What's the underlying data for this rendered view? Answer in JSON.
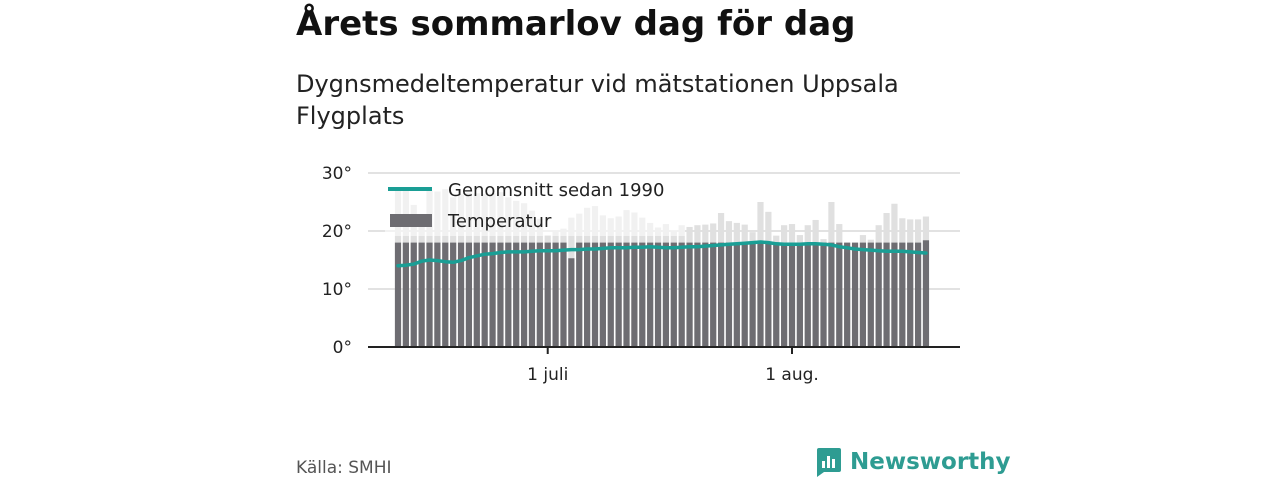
{
  "title": "Årets sommarlov dag för dag",
  "subtitle": "Dygnsmedeltemperatur vid mätstationen Uppsala Flygplats",
  "source": "Källa: SMHI",
  "brand": {
    "name": "Newsworthy",
    "color": "#2e9c92"
  },
  "colors": {
    "bar": "#6e6d72",
    "ghost_bar": "#e0e0e0",
    "line": "#1a9e95",
    "grid": "#d8d8d8",
    "axis": "#222222"
  },
  "chart_data": {
    "type": "bar",
    "ylim": [
      0,
      30
    ],
    "yticks": [
      {
        "value": 0,
        "label": "0°"
      },
      {
        "value": 10,
        "label": "10°"
      },
      {
        "value": 20,
        "label": "20°"
      },
      {
        "value": 30,
        "label": "30°"
      }
    ],
    "xticks": [
      {
        "date": "2018-07-01",
        "label": "1 juli"
      },
      {
        "date": "2018-08-01",
        "label": "1 aug."
      }
    ],
    "x_start": "2018-06-12",
    "x_end": "2018-08-18",
    "grid": true,
    "legend_placement": "top-left",
    "series": [
      {
        "name": "Temperatur",
        "kind": "bar",
        "x": [
          "2018-06-12",
          "2018-06-13",
          "2018-06-14",
          "2018-06-15",
          "2018-06-16",
          "2018-06-17",
          "2018-06-18",
          "2018-06-19",
          "2018-06-20",
          "2018-06-21",
          "2018-06-22",
          "2018-06-23",
          "2018-06-24",
          "2018-06-25",
          "2018-06-26",
          "2018-06-27",
          "2018-06-28",
          "2018-06-29",
          "2018-06-30",
          "2018-07-01",
          "2018-07-02",
          "2018-07-03",
          "2018-07-04",
          "2018-07-05",
          "2018-07-06",
          "2018-07-07",
          "2018-07-08",
          "2018-07-09",
          "2018-07-10",
          "2018-07-11",
          "2018-07-12",
          "2018-07-13",
          "2018-07-14",
          "2018-07-15",
          "2018-07-16",
          "2018-07-17",
          "2018-07-18",
          "2018-07-19",
          "2018-07-20",
          "2018-07-21",
          "2018-07-22",
          "2018-07-23",
          "2018-07-24",
          "2018-07-25",
          "2018-07-26",
          "2018-07-27",
          "2018-07-28",
          "2018-07-29",
          "2018-07-30",
          "2018-07-31",
          "2018-08-01",
          "2018-08-02",
          "2018-08-03",
          "2018-08-04",
          "2018-08-05",
          "2018-08-06",
          "2018-08-07",
          "2018-08-08",
          "2018-08-09",
          "2018-08-10",
          "2018-08-11",
          "2018-08-12",
          "2018-08-13",
          "2018-08-14",
          "2018-08-15",
          "2018-08-16",
          "2018-08-17",
          "2018-08-18"
        ],
        "values": [
          18.0,
          18.0,
          18.0,
          18.0,
          18.0,
          18.0,
          18.0,
          18.0,
          18.0,
          18.0,
          18.0,
          18.0,
          18.0,
          18.0,
          18.0,
          18.0,
          18.0,
          18.0,
          18.0,
          18.0,
          18.0,
          18.0,
          15.3,
          18.0,
          18.0,
          18.0,
          18.0,
          18.0,
          18.0,
          18.0,
          18.0,
          18.0,
          18.0,
          18.0,
          18.0,
          18.0,
          18.0,
          18.0,
          18.0,
          18.0,
          18.0,
          18.0,
          18.0,
          18.0,
          18.0,
          18.0,
          18.0,
          18.0,
          18.0,
          18.0,
          18.0,
          18.0,
          18.0,
          18.0,
          18.0,
          18.0,
          18.0,
          18.0,
          18.0,
          18.0,
          18.0,
          18.0,
          18.0,
          18.0,
          18.0,
          18.0,
          18.0,
          18.4
        ]
      },
      {
        "name": "",
        "kind": "ghost_bar",
        "x": [
          "2018-06-12",
          "2018-06-13",
          "2018-06-14",
          "2018-06-15",
          "2018-06-16",
          "2018-06-17",
          "2018-06-18",
          "2018-06-19",
          "2018-06-20",
          "2018-06-21",
          "2018-06-22",
          "2018-06-23",
          "2018-06-24",
          "2018-06-25",
          "2018-06-26",
          "2018-06-27",
          "2018-06-28",
          "2018-06-29",
          "2018-06-30",
          "2018-07-01",
          "2018-07-02",
          "2018-07-03",
          "2018-07-04",
          "2018-07-05",
          "2018-07-06",
          "2018-07-07",
          "2018-07-08",
          "2018-07-09",
          "2018-07-10",
          "2018-07-11",
          "2018-07-12",
          "2018-07-13",
          "2018-07-14",
          "2018-07-15",
          "2018-07-16",
          "2018-07-17",
          "2018-07-18",
          "2018-07-19",
          "2018-07-20",
          "2018-07-21",
          "2018-07-22",
          "2018-07-23",
          "2018-07-24",
          "2018-07-25",
          "2018-07-26",
          "2018-07-27",
          "2018-07-28",
          "2018-07-29",
          "2018-07-30",
          "2018-07-31",
          "2018-08-01",
          "2018-08-02",
          "2018-08-03",
          "2018-08-04",
          "2018-08-05",
          "2018-08-06",
          "2018-08-07",
          "2018-08-08",
          "2018-08-09",
          "2018-08-10",
          "2018-08-11",
          "2018-08-12",
          "2018-08-13",
          "2018-08-14",
          "2018-08-15",
          "2018-08-16",
          "2018-08-17",
          "2018-08-18"
        ],
        "values": [
          27.0,
          27.0,
          24.5,
          22.5,
          27.0,
          26.8,
          27.2,
          25.8,
          26.3,
          26.6,
          26.5,
          26.4,
          26.5,
          26.7,
          25.8,
          25.2,
          24.8,
          23.5,
          22.1,
          19.3,
          20.0,
          20.4,
          22.3,
          23.0,
          24.0,
          24.3,
          22.7,
          22.2,
          22.5,
          23.6,
          23.2,
          22.3,
          21.4,
          20.6,
          21.2,
          20.1,
          21.0,
          20.7,
          21.0,
          21.1,
          21.3,
          23.1,
          21.7,
          21.4,
          21.1,
          19.8,
          25.0,
          23.3,
          19.2,
          21.0,
          21.2,
          19.3,
          21.0,
          21.9,
          18.6,
          25.0,
          21.2,
          16.5,
          15.4,
          19.3,
          18.5,
          21.0,
          23.1,
          24.7,
          22.2,
          22.0,
          22.0,
          22.5
        ]
      },
      {
        "name": "Genomsnitt sedan 1990",
        "kind": "line",
        "x": [
          "2018-06-12",
          "2018-06-13",
          "2018-06-14",
          "2018-06-15",
          "2018-06-16",
          "2018-06-17",
          "2018-06-18",
          "2018-06-19",
          "2018-06-20",
          "2018-06-21",
          "2018-06-22",
          "2018-06-23",
          "2018-06-24",
          "2018-06-25",
          "2018-06-26",
          "2018-06-27",
          "2018-06-28",
          "2018-06-29",
          "2018-06-30",
          "2018-07-01",
          "2018-07-02",
          "2018-07-03",
          "2018-07-04",
          "2018-07-05",
          "2018-07-06",
          "2018-07-07",
          "2018-07-08",
          "2018-07-09",
          "2018-07-10",
          "2018-07-11",
          "2018-07-12",
          "2018-07-13",
          "2018-07-14",
          "2018-07-15",
          "2018-07-16",
          "2018-07-17",
          "2018-07-18",
          "2018-07-19",
          "2018-07-20",
          "2018-07-21",
          "2018-07-22",
          "2018-07-23",
          "2018-07-24",
          "2018-07-25",
          "2018-07-26",
          "2018-07-27",
          "2018-07-28",
          "2018-07-29",
          "2018-07-30",
          "2018-07-31",
          "2018-08-01",
          "2018-08-02",
          "2018-08-03",
          "2018-08-04",
          "2018-08-05",
          "2018-08-06",
          "2018-08-07",
          "2018-08-08",
          "2018-08-09",
          "2018-08-10",
          "2018-08-11",
          "2018-08-12",
          "2018-08-13",
          "2018-08-14",
          "2018-08-15",
          "2018-08-16",
          "2018-08-17",
          "2018-08-18"
        ],
        "values": [
          14.0,
          14.1,
          14.3,
          14.8,
          15.0,
          14.9,
          14.7,
          14.6,
          14.9,
          15.4,
          15.7,
          16.0,
          16.1,
          16.3,
          16.4,
          16.4,
          16.4,
          16.5,
          16.6,
          16.6,
          16.6,
          16.7,
          16.8,
          16.8,
          16.9,
          16.9,
          17.0,
          17.1,
          17.1,
          17.1,
          17.2,
          17.2,
          17.3,
          17.2,
          17.1,
          17.1,
          17.2,
          17.3,
          17.3,
          17.4,
          17.5,
          17.6,
          17.7,
          17.8,
          17.9,
          18.0,
          18.1,
          18.0,
          17.8,
          17.7,
          17.7,
          17.7,
          17.8,
          17.8,
          17.7,
          17.6,
          17.3,
          17.1,
          16.9,
          16.8,
          16.7,
          16.6,
          16.5,
          16.5,
          16.5,
          16.4,
          16.3,
          16.2
        ]
      }
    ]
  }
}
